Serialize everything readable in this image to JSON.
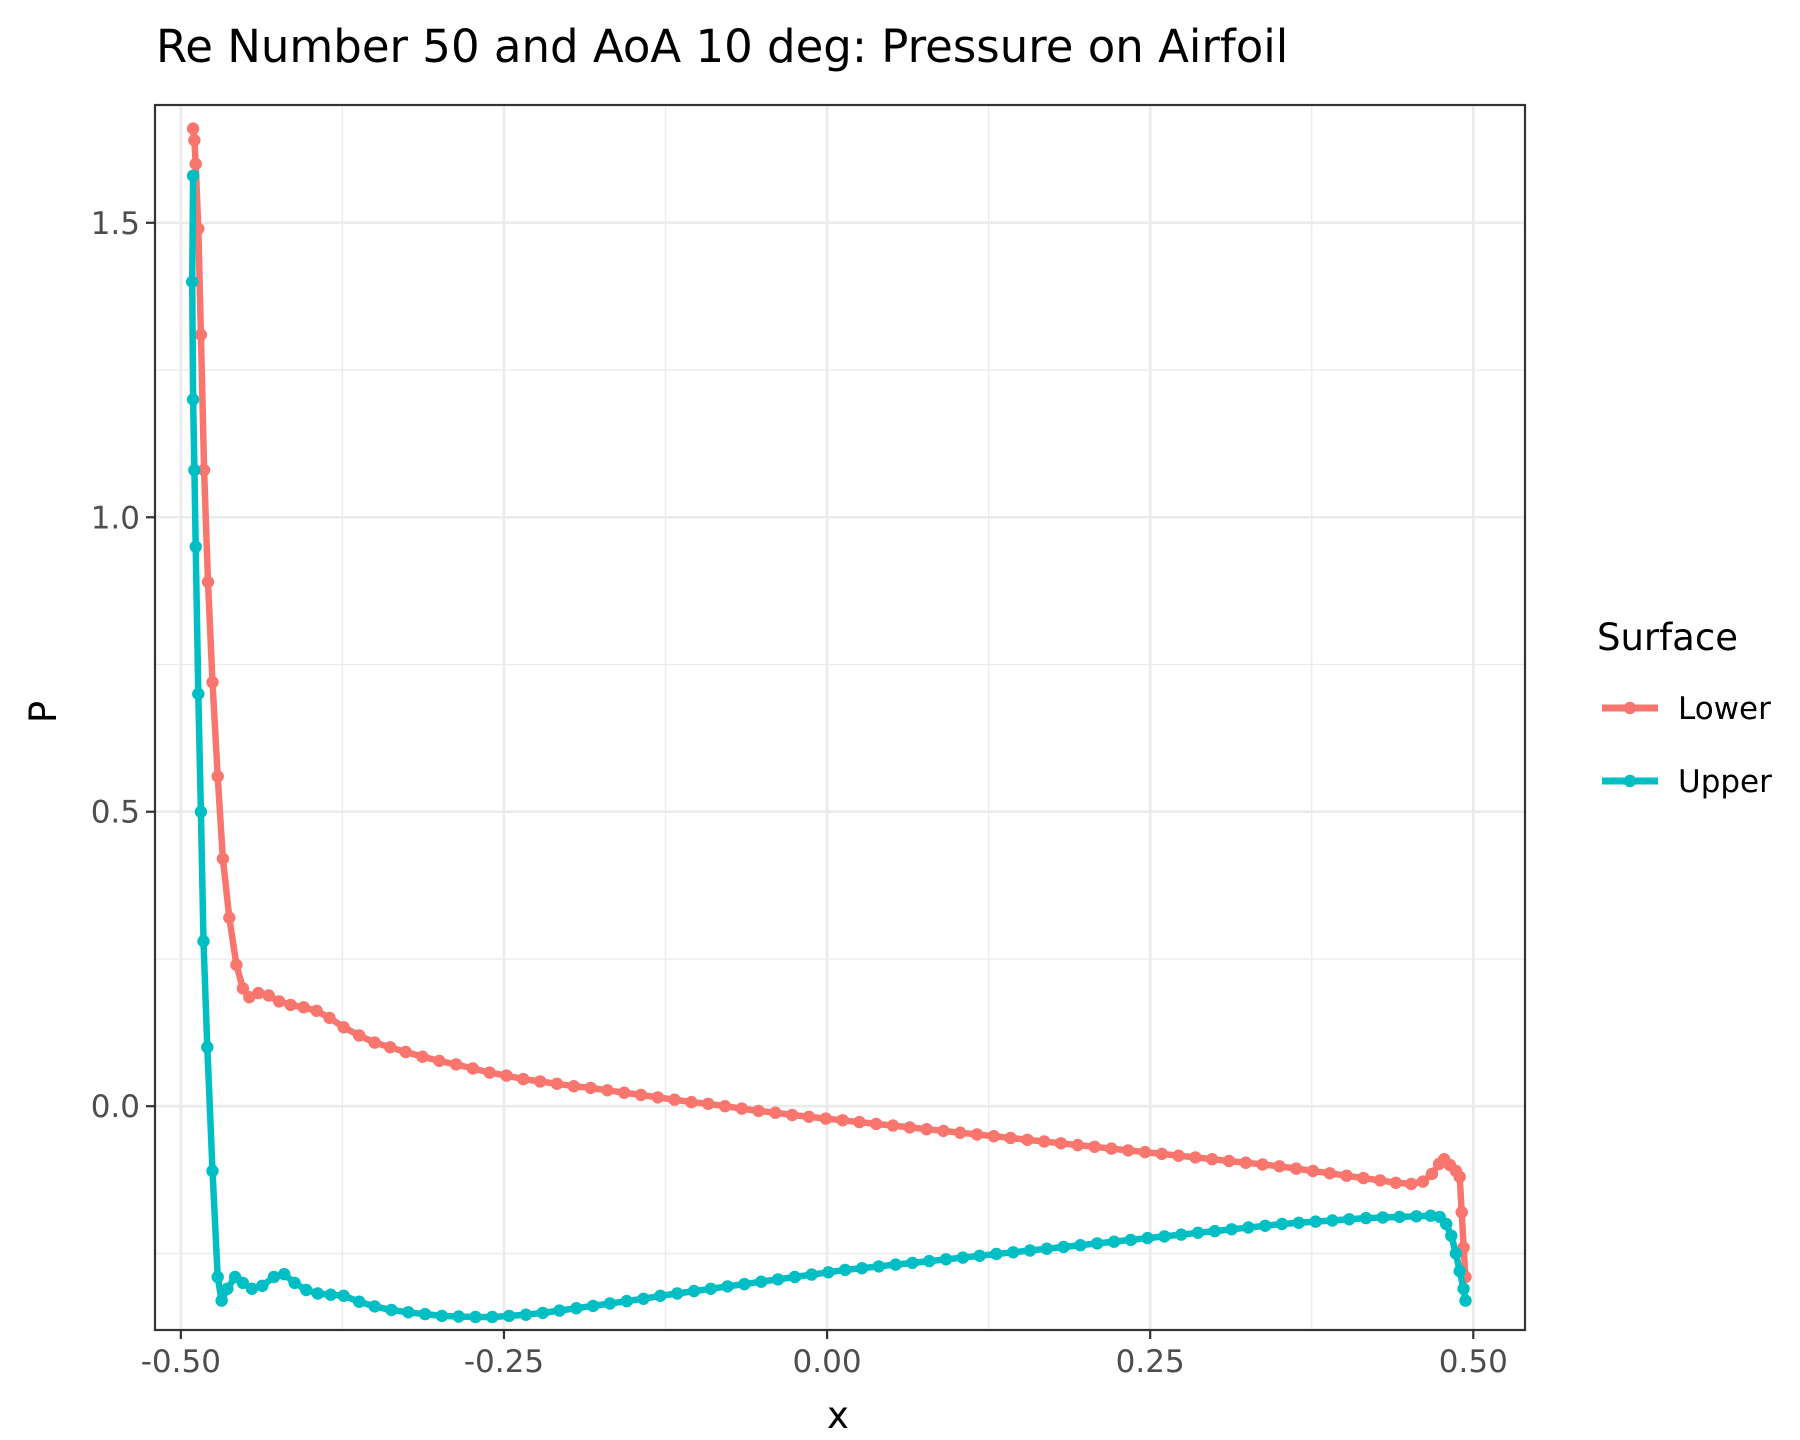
{
  "chart_data": {
    "type": "line",
    "title": "Re Number 50 and AoA 10 deg: Pressure on Airfoil",
    "xlabel": "x",
    "ylabel": "P",
    "xlim": [
      -0.52,
      0.54
    ],
    "ylim": [
      -0.38,
      1.7
    ],
    "x_ticks": [
      -0.5,
      -0.25,
      0.0,
      0.25,
      0.5
    ],
    "x_tick_labels": [
      "-0.50",
      "-0.25",
      "0.00",
      "0.25",
      "0.50"
    ],
    "y_ticks": [
      0.0,
      0.5,
      1.0,
      1.5
    ],
    "y_tick_labels": [
      "0.0",
      "0.5",
      "1.0",
      "1.5"
    ],
    "grid": true,
    "legend": {
      "title": "Surface",
      "position": "right"
    },
    "series": [
      {
        "name": "Lower",
        "color": "#F8766D",
        "points": [
          [
            -0.4905,
            1.66
          ],
          [
            -0.4895,
            1.64
          ],
          [
            -0.4885,
            1.6
          ],
          [
            -0.4865,
            1.49
          ],
          [
            -0.4845,
            1.31
          ],
          [
            -0.482,
            1.08
          ],
          [
            -0.479,
            0.89
          ],
          [
            -0.4755,
            0.72
          ],
          [
            -0.4715,
            0.56
          ],
          [
            -0.4675,
            0.42
          ],
          [
            -0.4625,
            0.32
          ],
          [
            -0.457,
            0.24
          ],
          [
            -0.452,
            0.2
          ],
          [
            -0.447,
            0.185
          ],
          [
            -0.44,
            0.192
          ],
          [
            -0.432,
            0.188
          ],
          [
            -0.424,
            0.178
          ],
          [
            -0.415,
            0.172
          ],
          [
            -0.405,
            0.168
          ],
          [
            -0.395,
            0.162
          ],
          [
            -0.385,
            0.15
          ],
          [
            -0.374,
            0.134
          ],
          [
            -0.362,
            0.12
          ],
          [
            -0.35,
            0.108
          ],
          [
            -0.338,
            0.1
          ],
          [
            -0.326,
            0.092
          ],
          [
            -0.313,
            0.084
          ],
          [
            -0.3,
            0.077
          ],
          [
            -0.287,
            0.071
          ],
          [
            -0.274,
            0.064
          ],
          [
            -0.261,
            0.057
          ],
          [
            -0.248,
            0.052
          ],
          [
            -0.235,
            0.046
          ],
          [
            -0.222,
            0.042
          ],
          [
            -0.209,
            0.038
          ],
          [
            -0.196,
            0.034
          ],
          [
            -0.183,
            0.031
          ],
          [
            -0.17,
            0.027
          ],
          [
            -0.157,
            0.023
          ],
          [
            -0.144,
            0.019
          ],
          [
            -0.131,
            0.015
          ],
          [
            -0.118,
            0.011
          ],
          [
            -0.105,
            0.007
          ],
          [
            -0.092,
            0.004
          ],
          [
            -0.079,
            0.0
          ],
          [
            -0.066,
            -0.004
          ],
          [
            -0.053,
            -0.008
          ],
          [
            -0.04,
            -0.011
          ],
          [
            -0.027,
            -0.015
          ],
          [
            -0.014,
            -0.018
          ],
          [
            -0.001,
            -0.021
          ],
          [
            0.012,
            -0.024
          ],
          [
            0.025,
            -0.027
          ],
          [
            0.038,
            -0.03
          ],
          [
            0.051,
            -0.033
          ],
          [
            0.064,
            -0.036
          ],
          [
            0.077,
            -0.039
          ],
          [
            0.09,
            -0.042
          ],
          [
            0.103,
            -0.045
          ],
          [
            0.116,
            -0.048
          ],
          [
            0.129,
            -0.051
          ],
          [
            0.142,
            -0.054
          ],
          [
            0.155,
            -0.057
          ],
          [
            0.168,
            -0.06
          ],
          [
            0.181,
            -0.063
          ],
          [
            0.194,
            -0.066
          ],
          [
            0.207,
            -0.069
          ],
          [
            0.22,
            -0.072
          ],
          [
            0.233,
            -0.075
          ],
          [
            0.246,
            -0.078
          ],
          [
            0.259,
            -0.081
          ],
          [
            0.272,
            -0.084
          ],
          [
            0.285,
            -0.087
          ],
          [
            0.298,
            -0.09
          ],
          [
            0.311,
            -0.093
          ],
          [
            0.324,
            -0.096
          ],
          [
            0.337,
            -0.099
          ],
          [
            0.35,
            -0.102
          ],
          [
            0.363,
            -0.106
          ],
          [
            0.376,
            -0.11
          ],
          [
            0.389,
            -0.114
          ],
          [
            0.402,
            -0.118
          ],
          [
            0.415,
            -0.122
          ],
          [
            0.428,
            -0.126
          ],
          [
            0.44,
            -0.13
          ],
          [
            0.452,
            -0.132
          ],
          [
            0.461,
            -0.128
          ],
          [
            0.468,
            -0.115
          ],
          [
            0.4735,
            -0.098
          ],
          [
            0.4775,
            -0.09
          ],
          [
            0.482,
            -0.1
          ],
          [
            0.4865,
            -0.11
          ],
          [
            0.4895,
            -0.12
          ],
          [
            0.491,
            -0.18
          ],
          [
            0.4925,
            -0.24
          ],
          [
            0.494,
            -0.29
          ]
        ]
      },
      {
        "name": "Upper",
        "color": "#00BFC4",
        "points": [
          [
            -0.4905,
            1.58
          ],
          [
            -0.4912,
            1.4
          ],
          [
            -0.4905,
            1.2
          ],
          [
            -0.4895,
            1.08
          ],
          [
            -0.4885,
            0.95
          ],
          [
            -0.4865,
            0.7
          ],
          [
            -0.4845,
            0.5
          ],
          [
            -0.4825,
            0.28
          ],
          [
            -0.4795,
            0.1
          ],
          [
            -0.4755,
            -0.11
          ],
          [
            -0.4715,
            -0.29
          ],
          [
            -0.4685,
            -0.33
          ],
          [
            -0.464,
            -0.31
          ],
          [
            -0.458,
            -0.29
          ],
          [
            -0.452,
            -0.3
          ],
          [
            -0.445,
            -0.31
          ],
          [
            -0.437,
            -0.305
          ],
          [
            -0.428,
            -0.29
          ],
          [
            -0.42,
            -0.285
          ],
          [
            -0.412,
            -0.3
          ],
          [
            -0.403,
            -0.312
          ],
          [
            -0.394,
            -0.318
          ],
          [
            -0.384,
            -0.32
          ],
          [
            -0.374,
            -0.322
          ],
          [
            -0.362,
            -0.332
          ],
          [
            -0.35,
            -0.34
          ],
          [
            -0.337,
            -0.346
          ],
          [
            -0.324,
            -0.35
          ],
          [
            -0.311,
            -0.353
          ],
          [
            -0.298,
            -0.356
          ],
          [
            -0.285,
            -0.357
          ],
          [
            -0.272,
            -0.358
          ],
          [
            -0.259,
            -0.358
          ],
          [
            -0.246,
            -0.356
          ],
          [
            -0.233,
            -0.354
          ],
          [
            -0.22,
            -0.351
          ],
          [
            -0.207,
            -0.347
          ],
          [
            -0.194,
            -0.343
          ],
          [
            -0.181,
            -0.339
          ],
          [
            -0.168,
            -0.335
          ],
          [
            -0.155,
            -0.331
          ],
          [
            -0.142,
            -0.327
          ],
          [
            -0.129,
            -0.322
          ],
          [
            -0.116,
            -0.318
          ],
          [
            -0.103,
            -0.314
          ],
          [
            -0.09,
            -0.31
          ],
          [
            -0.077,
            -0.306
          ],
          [
            -0.064,
            -0.302
          ],
          [
            -0.051,
            -0.298
          ],
          [
            -0.038,
            -0.294
          ],
          [
            -0.025,
            -0.29
          ],
          [
            -0.012,
            -0.286
          ],
          [
            0.001,
            -0.282
          ],
          [
            0.014,
            -0.278
          ],
          [
            0.027,
            -0.275
          ],
          [
            0.04,
            -0.272
          ],
          [
            0.053,
            -0.269
          ],
          [
            0.066,
            -0.266
          ],
          [
            0.079,
            -0.263
          ],
          [
            0.092,
            -0.26
          ],
          [
            0.105,
            -0.257
          ],
          [
            0.118,
            -0.254
          ],
          [
            0.131,
            -0.251
          ],
          [
            0.144,
            -0.248
          ],
          [
            0.157,
            -0.245
          ],
          [
            0.17,
            -0.242
          ],
          [
            0.183,
            -0.239
          ],
          [
            0.196,
            -0.236
          ],
          [
            0.209,
            -0.233
          ],
          [
            0.222,
            -0.23
          ],
          [
            0.235,
            -0.227
          ],
          [
            0.248,
            -0.224
          ],
          [
            0.261,
            -0.221
          ],
          [
            0.274,
            -0.218
          ],
          [
            0.287,
            -0.215
          ],
          [
            0.3,
            -0.212
          ],
          [
            0.313,
            -0.209
          ],
          [
            0.326,
            -0.206
          ],
          [
            0.339,
            -0.203
          ],
          [
            0.352,
            -0.2
          ],
          [
            0.365,
            -0.198
          ],
          [
            0.378,
            -0.196
          ],
          [
            0.391,
            -0.194
          ],
          [
            0.404,
            -0.192
          ],
          [
            0.417,
            -0.19
          ],
          [
            0.43,
            -0.189
          ],
          [
            0.443,
            -0.188
          ],
          [
            0.456,
            -0.187
          ],
          [
            0.467,
            -0.186
          ],
          [
            0.474,
            -0.188
          ],
          [
            0.479,
            -0.2
          ],
          [
            0.483,
            -0.22
          ],
          [
            0.4865,
            -0.25
          ],
          [
            0.4895,
            -0.28
          ],
          [
            0.4925,
            -0.31
          ],
          [
            0.494,
            -0.33
          ]
        ]
      }
    ]
  }
}
